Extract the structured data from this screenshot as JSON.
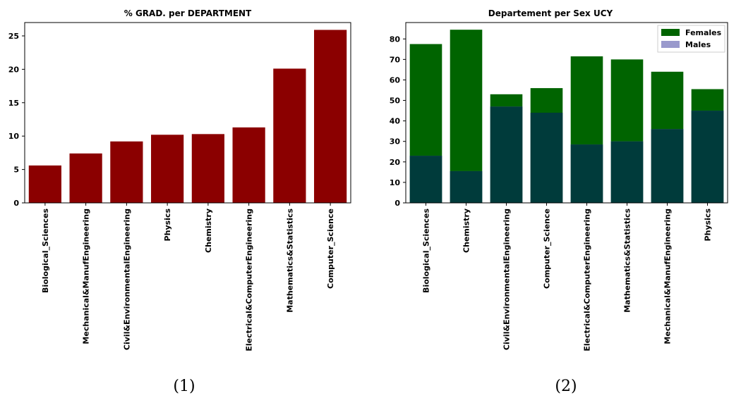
{
  "charts": [
    {
      "type": "bar",
      "title": "% GRAD. per DEPARTMENT",
      "caption": "(1)",
      "categories": [
        "Biological_Sciences",
        "Mechanical&ManufEngineering",
        "Civil&EnvironmentalEngineering",
        "Physics",
        "Chemistry",
        "Electrical&ComputerEngineering",
        "Mathematics&Statistics",
        "Computer_Science"
      ],
      "values": [
        5.6,
        7.4,
        9.2,
        10.2,
        10.3,
        11.3,
        20.1,
        25.9
      ],
      "ylim": [
        0,
        27
      ],
      "yticks": [
        0,
        5,
        10,
        15,
        20,
        25
      ],
      "color": "#8b0000"
    },
    {
      "type": "bar",
      "title": "Departement per Sex UCY",
      "caption": "(2)",
      "categories": [
        "Biological_Sciences",
        "Chemistry",
        "Civil&EnvironmentalEngineering",
        "Computer_Science",
        "Electrical&ComputerEngineering",
        "Mathematics&Statistics",
        "Mechanical&ManufEngineering",
        "Physics"
      ],
      "series": [
        {
          "name": "Females",
          "values": [
            77.5,
            84.5,
            53,
            56,
            71.5,
            70,
            64,
            55.5
          ],
          "color": "#006400"
        },
        {
          "name": "Males",
          "values": [
            23,
            15.5,
            47,
            44,
            28.5,
            30,
            36,
            45
          ],
          "color": "#9999cc"
        }
      ],
      "overlap_color": "#003b3b",
      "ylim": [
        0,
        88
      ],
      "yticks": [
        0,
        10,
        20,
        30,
        40,
        50,
        60,
        70,
        80
      ],
      "legend_position": "top-right"
    }
  ]
}
